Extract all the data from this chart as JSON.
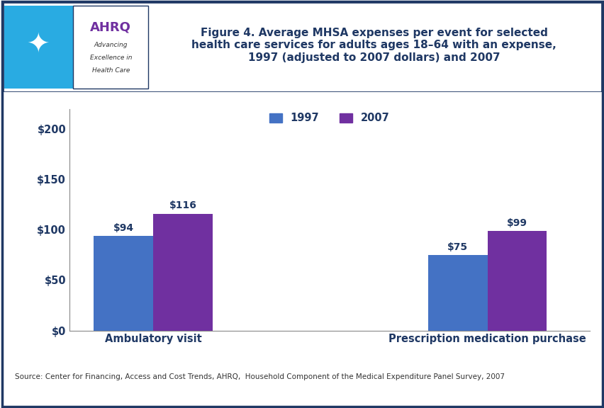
{
  "categories": [
    "Ambulatory visit",
    "Prescription medication purchase"
  ],
  "values_1997": [
    94,
    75
  ],
  "values_2007": [
    116,
    99
  ],
  "color_1997": "#4472C4",
  "color_2007": "#7030A0",
  "bar_width": 0.32,
  "group_positions": [
    1.0,
    2.8
  ],
  "ylim": [
    0,
    220
  ],
  "yticks": [
    0,
    50,
    100,
    150,
    200
  ],
  "ytick_labels": [
    "$0",
    "$50",
    "$100",
    "$150",
    "$200"
  ],
  "legend_labels": [
    "1997",
    "2007"
  ],
  "title_line1": "Figure 4. Average MHSA expenses per event for selected",
  "title_line2": "health care services for adults ages 18–64 with an expense,",
  "title_line3": "1997 (adjusted to 2007 dollars) and 2007",
  "title_color": "#1F3864",
  "source_text": "Source: Center for Financing, Access and Cost Trends, AHRQ,  Household Component of the Medical Expenditure Panel Survey, 2007",
  "label_color": "#1F3864",
  "axis_label_color": "#1F3864",
  "tick_label_color": "#1F3864",
  "background_color": "#FFFFFF",
  "dark_blue": "#1F3864",
  "hhs_blue": "#29ABE2",
  "ahrq_purple": "#7030A0",
  "border_color": "#1F3864",
  "divider_color": "#1F3864",
  "logo_box_color": "#29ABE2",
  "logo_box2_color": "#FFFFFF"
}
